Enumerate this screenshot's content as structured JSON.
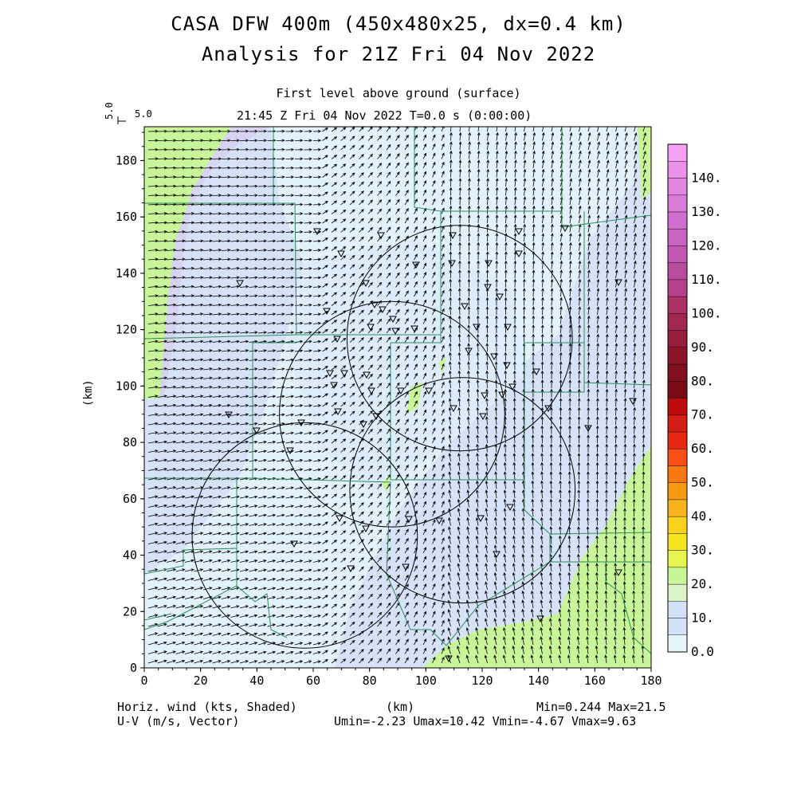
{
  "title": {
    "line1": "CASA DFW 400m (450x480x25, dx=0.4 km)",
    "line2": "Analysis for 21Z Fri 04 Nov 2022"
  },
  "subtitle": {
    "line1": "First level above ground (surface)",
    "line2": "21:45 Z Fri 04 Nov 2022    T=0.0 s (0:00:00)"
  },
  "vector_key": {
    "value": "5.0",
    "label": "5.0"
  },
  "footer": {
    "left1": "Horiz. wind (kts, Shaded)",
    "left2": "U-V (m/s, Vector)",
    "center": "(km)",
    "right1": "Min=0.244 Max=21.5",
    "right2": "Umin=-2.23 Umax=10.42 Vmin=-4.67 Vmax=9.63"
  },
  "colors": {
    "boundary": "#2e8b57",
    "radar_circle": "#000000",
    "vector": "#000000"
  },
  "chart_data": {
    "type": "heatmap",
    "title": "CASA DFW 400m (450x480x25, dx=0.4 km)",
    "xlabel": "(km)",
    "ylabel": "(km)",
    "xlim": [
      0,
      180
    ],
    "ylim": [
      0,
      192
    ],
    "x_ticks": [
      "0",
      "20",
      "40",
      "60",
      "80",
      "100",
      "120",
      "140",
      "160",
      "180"
    ],
    "y_ticks": [
      "0",
      "20",
      "40",
      "60",
      "80",
      "100",
      "120",
      "140",
      "160",
      "180"
    ],
    "shaded_field": "Horiz. wind (kts)",
    "shaded_min": 0.244,
    "shaded_max": 21.5,
    "vector_field": "U-V (m/s)",
    "umin": -2.23,
    "umax": 10.42,
    "vmin": -4.67,
    "vmax": 9.63,
    "colorbar": {
      "levels": [
        0,
        5,
        10,
        15,
        20,
        25,
        30,
        35,
        40,
        45,
        50,
        55,
        60,
        65,
        70,
        75,
        80,
        85,
        90,
        95,
        100,
        105,
        110,
        115,
        120,
        125,
        130,
        135,
        140,
        145
      ],
      "labels": [
        "0.0",
        "10.",
        "20.",
        "30.",
        "40.",
        "50.",
        "60.",
        "70.",
        "80.",
        "90.",
        "100.",
        "110.",
        "120.",
        "130.",
        "140."
      ],
      "colors": [
        "#e6f5fa",
        "#d2e0f8",
        "#d2e0f8",
        "#dcf5c6",
        "#c8f596",
        "#e8f550",
        "#f5e61e",
        "#fad21e",
        "#f8b41e",
        "#f89a14",
        "#f87814",
        "#f85014",
        "#e62814",
        "#d21e14",
        "#be0a0a",
        "#780a14",
        "#820f1e",
        "#8c1428",
        "#961e3c",
        "#a02850",
        "#aa3264",
        "#b4408c",
        "#ba4ca0",
        "#c058b4",
        "#c864c4",
        "#d06ed0",
        "#d87ad8",
        "#e086e0",
        "#ea92ea",
        "#f4a0f4"
      ]
    },
    "radar_circles_km": [
      {
        "center": [
          112,
          117
        ],
        "radius": 40
      },
      {
        "center": [
          88,
          90
        ],
        "radius": 40
      },
      {
        "center": [
          113,
          63
        ],
        "radius": 40
      },
      {
        "center": [
          57,
          47
        ],
        "radius": 40
      }
    ]
  }
}
